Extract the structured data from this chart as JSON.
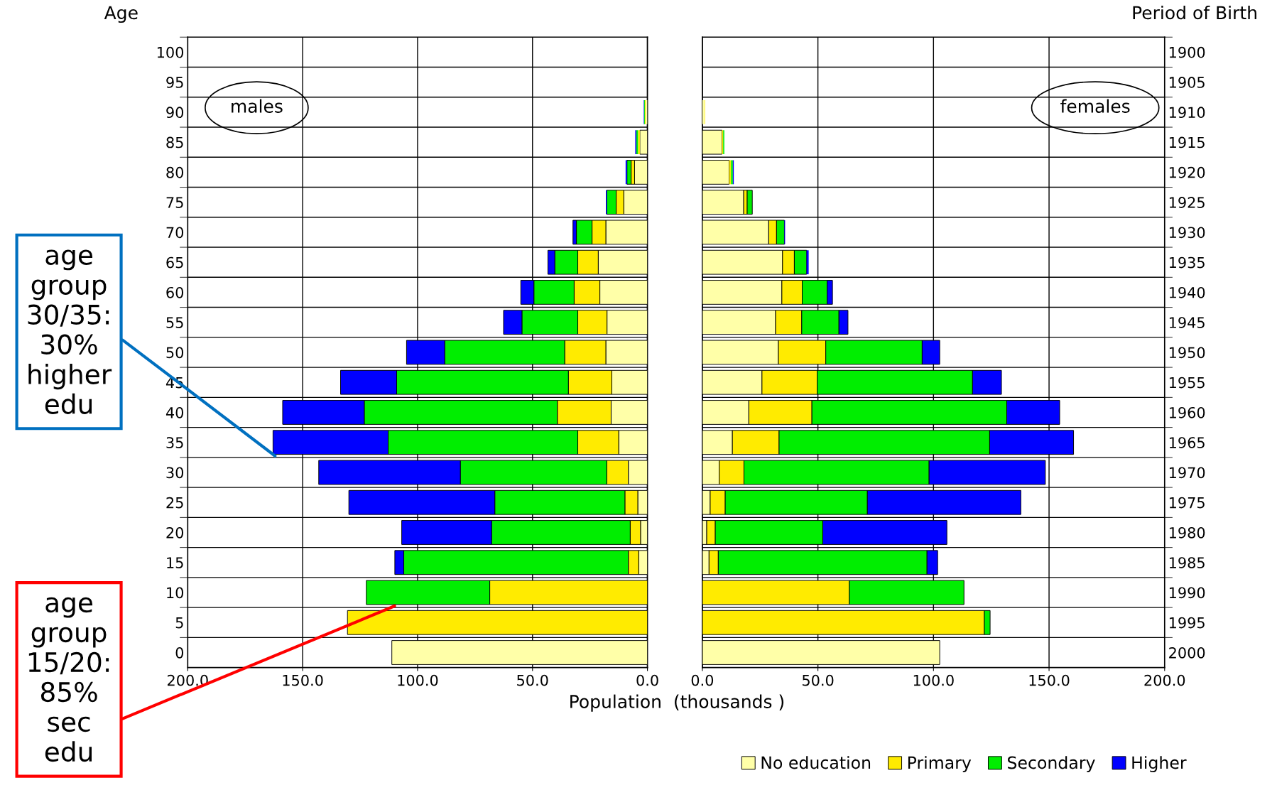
{
  "chart_data": [
    {
      "type": "bar",
      "orientation": "horizontal",
      "stacked": true,
      "title": "males",
      "ylabel": "Age",
      "xlabel": "Population  (thousands )",
      "grid": true,
      "legend": false,
      "categories": [
        "100",
        "95",
        "90",
        "85",
        "80",
        "75",
        "70",
        "65",
        "60",
        "55",
        "50",
        "45",
        "40",
        "35",
        "30",
        "25",
        "20",
        "15",
        "10",
        "5",
        "0"
      ],
      "xlim": [
        200,
        0
      ],
      "xticks": [
        {
          "value": 200,
          "label": "200.0"
        },
        {
          "value": 150,
          "label": "150.0"
        },
        {
          "value": 100,
          "label": "100.0"
        },
        {
          "value": 50,
          "label": "50.0"
        },
        {
          "value": 0,
          "label": "0.0"
        }
      ],
      "series": [
        {
          "color": "#ffffa8",
          "values": [
            0,
            0,
            0.8,
            3.3,
            5.6,
            10.3,
            18.1,
            21.4,
            20.7,
            17.6,
            18.1,
            15.5,
            15.8,
            12.5,
            8.3,
            4.2,
            3.0,
            3.8,
            0,
            0,
            111.2
          ]
        },
        {
          "color": "#ffeb00",
          "values": [
            0,
            0,
            0.3,
            0.8,
            1.5,
            3.3,
            6.0,
            8.9,
            11.2,
            12.7,
            17.9,
            18.9,
            23.4,
            17.8,
            9.4,
            5.6,
            4.5,
            4.5,
            68.6,
            130.5,
            0
          ]
        },
        {
          "color": "#00ee00",
          "values": [
            0,
            0,
            0.3,
            0.7,
            1.8,
            4.1,
            6.8,
            10.0,
            17.5,
            24.3,
            52.2,
            74.7,
            84.0,
            82.5,
            63.7,
            56.6,
            60.3,
            97.7,
            53.7,
            0,
            0
          ]
        },
        {
          "color": "#0000ff",
          "values": [
            0,
            0,
            0.2,
            0.5,
            0.6,
            0.4,
            1.5,
            3.0,
            5.7,
            8.0,
            16.6,
            24.4,
            35.5,
            50.1,
            61.6,
            63.5,
            39.1,
            3.9,
            0,
            0,
            0
          ]
        }
      ],
      "annotations": [
        {
          "text": "age\ngroup\n30/35:\n30%\nhigher\nedu",
          "x": 162,
          "y": "35"
        },
        {
          "text": "age\ngroup\n15/20:\n85%\nsec\nedu",
          "x": 110,
          "y": "10"
        }
      ]
    },
    {
      "type": "bar",
      "orientation": "horizontal",
      "stacked": true,
      "title": "females",
      "ylabel": "Period of Birth",
      "grid": true,
      "legend": "bottom right",
      "categories": [
        "1900",
        "1905",
        "1910",
        "1915",
        "1920",
        "1925",
        "1930",
        "1935",
        "1940",
        "1945",
        "1950",
        "1955",
        "1960",
        "1965",
        "1970",
        "1975",
        "1980",
        "1985",
        "1990",
        "1995",
        "2000"
      ],
      "xlim": [
        0,
        200
      ],
      "xticks": [
        {
          "value": 0,
          "label": "0.0"
        },
        {
          "value": 50,
          "label": "50.0"
        },
        {
          "value": 100,
          "label": "100.0"
        },
        {
          "value": 150,
          "label": "150.0"
        },
        {
          "value": 200,
          "label": "200.0"
        }
      ],
      "series": [
        {
          "name": "No education",
          "color": "#ffffa8",
          "values": [
            0,
            0,
            1.0,
            8.5,
            11.6,
            17.9,
            28.7,
            34.7,
            34.4,
            31.7,
            32.9,
            25.8,
            20.1,
            13.0,
            7.3,
            3.4,
            1.9,
            2.9,
            0,
            0,
            102.7
          ]
        },
        {
          "name": "Primary",
          "color": "#ffeb00",
          "values": [
            0,
            0,
            0.2,
            0.5,
            0.8,
            1.5,
            3.4,
            5.1,
            8.8,
            11.3,
            20.5,
            23.9,
            27.3,
            20.2,
            10.7,
            6.5,
            3.7,
            4.0,
            63.6,
            122.0,
            0
          ]
        },
        {
          "name": "Secondary",
          "color": "#00ee00",
          "values": [
            0,
            0,
            0,
            0.5,
            0.8,
            2.2,
            3.4,
            5.3,
            10.8,
            16.1,
            41.7,
            67.2,
            84.3,
            91.1,
            80.1,
            61.5,
            46.5,
            90.3,
            49.6,
            2.5,
            0
          ]
        },
        {
          "name": "Higher",
          "color": "#0000ff",
          "values": [
            0,
            0,
            0,
            0,
            0.4,
            0,
            0.3,
            0.9,
            2.3,
            3.9,
            7.6,
            12.5,
            22.9,
            36.3,
            50.3,
            66.4,
            53.7,
            4.6,
            0,
            0,
            0
          ]
        }
      ]
    }
  ]
}
